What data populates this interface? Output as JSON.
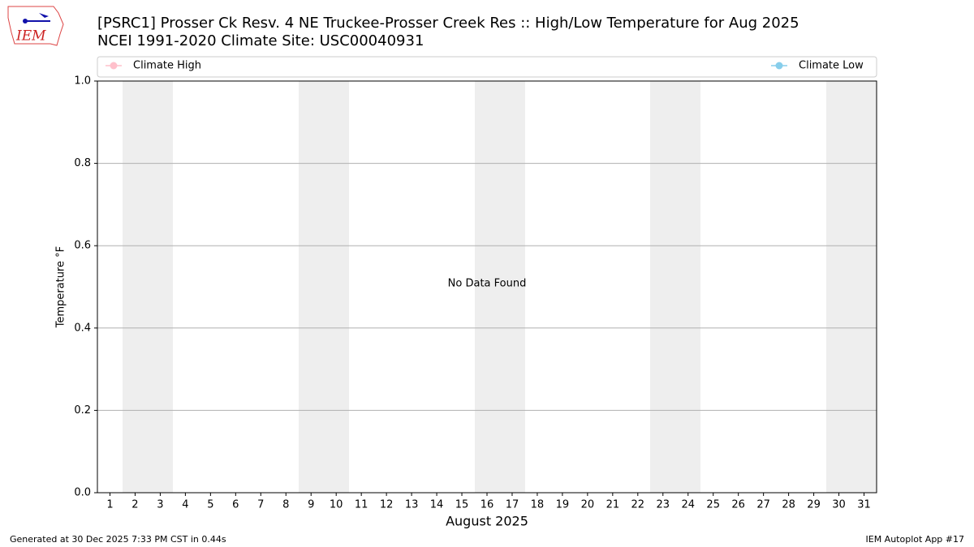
{
  "chart_data": {
    "type": "line",
    "title": "[PSRC1] Prosser Ck Resv. 4 NE Truckee-Prosser Creek Res :: High/Low Temperature for Aug 2025",
    "subtitle": "NCEI 1991-2020 Climate Site: USC00040931",
    "xlabel": "August 2025",
    "ylabel": "Temperature °F",
    "annotation": "No Data Found",
    "xlim": [
      0.5,
      31.5
    ],
    "xticks": [
      1,
      2,
      3,
      4,
      5,
      6,
      7,
      8,
      9,
      10,
      11,
      12,
      13,
      14,
      15,
      16,
      17,
      18,
      19,
      20,
      21,
      22,
      23,
      24,
      25,
      26,
      27,
      28,
      29,
      30,
      31
    ],
    "ylim": [
      0,
      1
    ],
    "yticks": [
      {
        "value": 0,
        "label": "0.0"
      },
      {
        "value": 0.2,
        "label": "0.2"
      },
      {
        "value": 0.4,
        "label": "0.4"
      },
      {
        "value": 0.6,
        "label": "0.6"
      },
      {
        "value": 0.8,
        "label": "0.8"
      },
      {
        "value": 1,
        "label": "1.0"
      }
    ],
    "grid": true,
    "series": [
      {
        "name": "Climate High",
        "color": "#ffc0cb"
      },
      {
        "name": "Climate Low",
        "color": "#87ceeb"
      }
    ]
  },
  "logo": "IEM",
  "footer": {
    "left": "Generated at 30 Dec 2025 7:33 PM CST in 0.44s",
    "right": "IEM Autoplot App #17"
  }
}
